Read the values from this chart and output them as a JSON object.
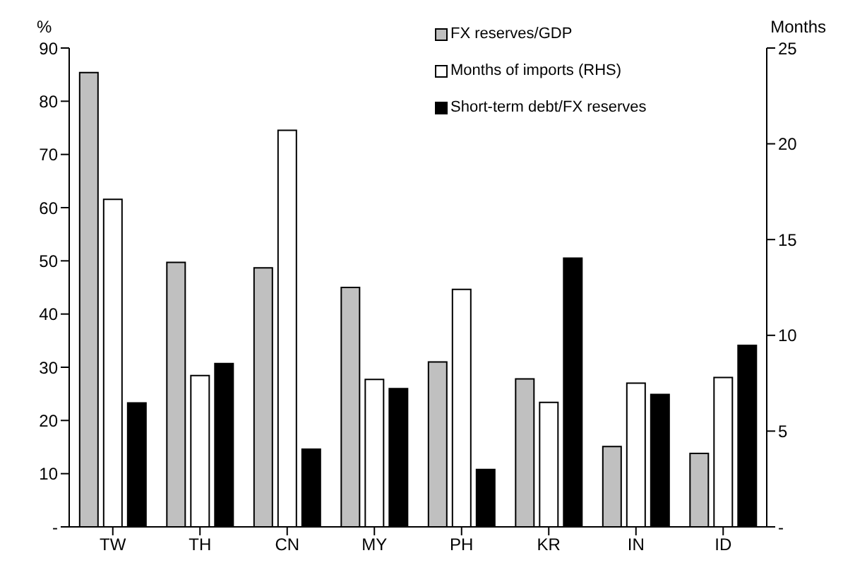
{
  "chart_data": {
    "type": "bar",
    "categories": [
      "TW",
      "TH",
      "CN",
      "MY",
      "PH",
      "KR",
      "IN",
      "ID"
    ],
    "ylabel": "%",
    "y2label": "Months",
    "ylim": [
      0,
      90
    ],
    "yticks": [
      {
        "value": 0,
        "label": "-"
      },
      10,
      20,
      30,
      40,
      50,
      60,
      70,
      80,
      90
    ],
    "y2lim": [
      0,
      25
    ],
    "y2ticks": [
      {
        "value": 0,
        "label": "-"
      },
      5,
      10,
      15,
      20,
      25
    ],
    "grid": false,
    "legend": "top right",
    "series": [
      {
        "name": "FX reserves/GDP",
        "color": "#c0c0c0",
        "values": [
          85.4,
          49.7,
          48.7,
          45,
          31,
          27.8,
          15.1,
          13.8
        ]
      },
      {
        "name": "Months of imports (RHS)",
        "color": "#ffffff",
        "axis": "y2",
        "values": [
          17.1,
          7.9,
          20.7,
          7.7,
          12.4,
          6.5,
          7.5,
          7.8
        ]
      },
      {
        "name": "Short-term debt/FX reserves",
        "color": "#000000",
        "values": [
          23.3,
          30.7,
          14.6,
          26,
          10.8,
          50.5,
          24.9,
          34.1
        ]
      }
    ]
  }
}
